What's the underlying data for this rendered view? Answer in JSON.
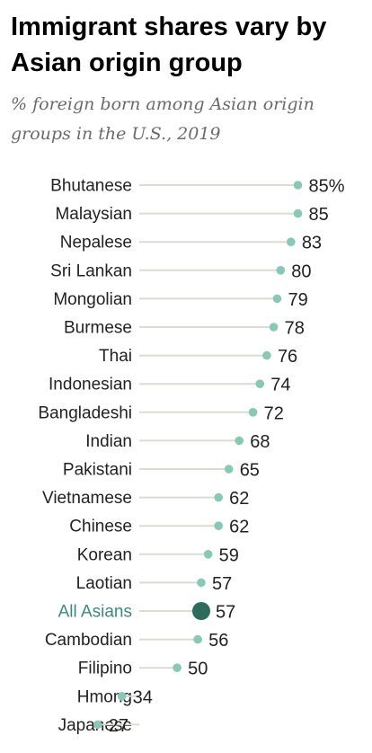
{
  "chart_data": {
    "type": "dot",
    "title": "Immigrant shares vary by Asian origin group",
    "subtitle": "% foreign born among Asian origin groups in the U.S., 2019",
    "unit_suffix": "%",
    "highlight_category": "All Asians",
    "colors": {
      "dot": "#88c8b6",
      "highlight_dot": "#2f6b5c",
      "highlight_label": "#3d8a78",
      "stem": "#dcdcd2"
    },
    "categories": [
      "Bhutanese",
      "Malaysian",
      "Nepalese",
      "Sri Lankan",
      "Mongolian",
      "Burmese",
      "Thai",
      "Indonesian",
      "Bangladeshi",
      "Indian",
      "Pakistani",
      "Vietnamese",
      "Chinese",
      "Korean",
      "Laotian",
      "All Asians",
      "Cambodian",
      "Filipino",
      "Hmong",
      "Japanese"
    ],
    "values": [
      85,
      85,
      83,
      80,
      79,
      78,
      76,
      74,
      72,
      68,
      65,
      62,
      62,
      59,
      57,
      57,
      56,
      50,
      34,
      27
    ]
  }
}
